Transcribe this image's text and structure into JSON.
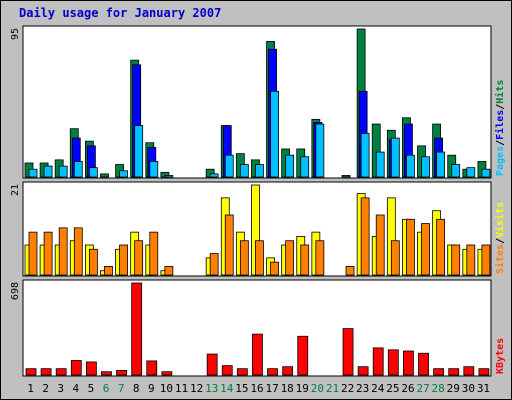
{
  "chart_data": {
    "type": "bar",
    "title": "Daily usage for January 2007",
    "days": [
      "1",
      "2",
      "3",
      "4",
      "5",
      "6",
      "7",
      "8",
      "9",
      "10",
      "11",
      "12",
      "13",
      "14",
      "15",
      "16",
      "17",
      "18",
      "19",
      "20",
      "21",
      "22",
      "23",
      "24",
      "25",
      "26",
      "27",
      "28",
      "29",
      "30",
      "31"
    ],
    "weekend_days": [
      "6",
      "7",
      "13",
      "14",
      "20",
      "21",
      "27",
      "28"
    ],
    "colors": {
      "background": "#c0c0c0",
      "panel": "#ffffff",
      "title": "#0000cc",
      "hits": "#008040",
      "files": "#0000ff",
      "pages": "#00c0ff",
      "visits": "#ffff00",
      "sites": "#ff8000",
      "kbytes": "#ff0000",
      "weekday_label": "#000000",
      "weekend_label": "#008040"
    },
    "panels": [
      {
        "id": "hits-files-pages",
        "ymax_label": "95",
        "legend": [
          {
            "text": "Pages",
            "color": "#00c0ff"
          },
          {
            "text": "Files",
            "color": "#0000ff"
          },
          {
            "text": "Hits",
            "color": "#008040"
          }
        ],
        "series": [
          {
            "name": "Hits",
            "values": [
              9,
              9,
              11,
              31,
              23,
              2,
              8,
              75,
              22,
              3,
              0,
              0,
              5,
              33,
              15,
              11,
              87,
              18,
              18,
              37,
              0,
              1,
              95,
              34,
              30,
              38,
              20,
              34,
              14,
              5,
              10
            ]
          },
          {
            "name": "Files",
            "values": [
              0,
              0,
              0,
              25,
              20,
              0,
              0,
              72,
              19,
              0,
              0,
              0,
              0,
              33,
              0,
              0,
              82,
              0,
              0,
              35,
              0,
              0,
              55,
              0,
              24,
              34,
              0,
              25,
              0,
              0,
              0
            ]
          },
          {
            "name": "Pages",
            "values": [
              5,
              7,
              7,
              10,
              6,
              0,
              4,
              33,
              10,
              1,
              0,
              0,
              2,
              14,
              8,
              8,
              55,
              14,
              13,
              34,
              0,
              0,
              28,
              16,
              25,
              14,
              13,
              16,
              8,
              6,
              5
            ]
          }
        ]
      },
      {
        "id": "visits-sites",
        "ymax_label": "21",
        "legend": [
          {
            "text": "Sites",
            "color": "#ff8000"
          },
          {
            "text": "Visits",
            "color": "#ffff00"
          }
        ],
        "series": [
          {
            "name": "Visits",
            "values": [
              7,
              7,
              7,
              8,
              7,
              1,
              6,
              10,
              7,
              1,
              0,
              0,
              4,
              18,
              10,
              21,
              4,
              7,
              9,
              10,
              0,
              0,
              19,
              9,
              18,
              13,
              10,
              15,
              7,
              6,
              6
            ]
          },
          {
            "name": "Sites",
            "values": [
              10,
              10,
              11,
              11,
              6,
              2,
              7,
              8,
              10,
              2,
              0,
              0,
              5,
              14,
              8,
              8,
              3,
              8,
              7,
              8,
              0,
              2,
              18,
              14,
              8,
              13,
              12,
              13,
              7,
              7,
              7
            ]
          }
        ]
      },
      {
        "id": "kbytes",
        "ymax_label": "698",
        "legend": [
          {
            "text": "KBytes",
            "color": "#ff0000"
          }
        ],
        "series": [
          {
            "name": "KBytes",
            "values": [
              48,
              48,
              48,
              110,
              99,
              25,
              35,
              698,
              107,
              25,
              0,
              0,
              159,
              71,
              48,
              310,
              48,
              63,
              294,
              0,
              0,
              352,
              63,
              206,
              191,
              182,
              165,
              48,
              48,
              63,
              48
            ]
          }
        ]
      }
    ]
  }
}
